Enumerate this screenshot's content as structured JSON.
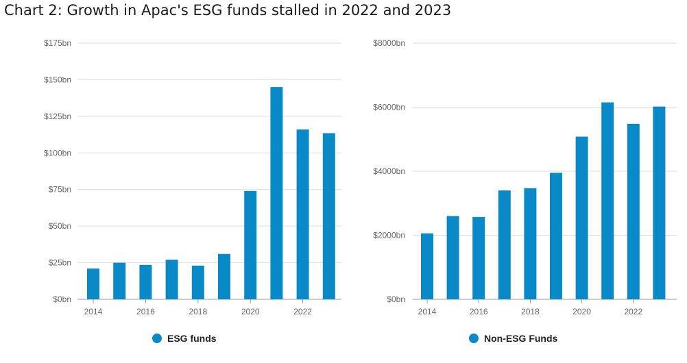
{
  "title": "Chart 2: Growth in Apac's ESG funds stalled in 2022 and 2023",
  "colors": {
    "bar": "#0a89c8",
    "grid": "#dddddd",
    "axis": "#999999"
  },
  "chart_data": [
    {
      "type": "bar",
      "title": "",
      "xlabel": "",
      "ylabel": "",
      "x": [
        2014,
        2015,
        2016,
        2017,
        2018,
        2019,
        2020,
        2021,
        2022,
        2023
      ],
      "x_tick_labels": [
        "2014",
        "2016",
        "2018",
        "2020",
        "2022"
      ],
      "series": [
        {
          "name": "ESG funds",
          "values": [
            21,
            25,
            23.5,
            27,
            23,
            31,
            74,
            145,
            116,
            113.5
          ]
        }
      ],
      "ylim": [
        0,
        175
      ],
      "y_ticks": [
        0,
        25,
        50,
        75,
        100,
        125,
        150,
        175
      ],
      "y_tick_labels": [
        "$0bn",
        "$25bn",
        "$50bn",
        "$75bn",
        "$100bn",
        "$125bn",
        "$150bn",
        "$175bn"
      ],
      "grid": true,
      "legend": "bottom-center"
    },
    {
      "type": "bar",
      "title": "",
      "xlabel": "",
      "ylabel": "",
      "x": [
        2014,
        2015,
        2016,
        2017,
        2018,
        2019,
        2020,
        2021,
        2022,
        2023
      ],
      "x_tick_labels": [
        "2014",
        "2016",
        "2018",
        "2020",
        "2022"
      ],
      "series": [
        {
          "name": "Non-ESG Funds",
          "values": [
            2060,
            2600,
            2570,
            3400,
            3470,
            3950,
            5080,
            6150,
            5480,
            6020
          ]
        }
      ],
      "ylim": [
        0,
        8000
      ],
      "y_ticks": [
        0,
        2000,
        4000,
        6000,
        8000
      ],
      "y_tick_labels": [
        "$0bn",
        "$2000bn",
        "$4000bn",
        "$6000bn",
        "$8000bn"
      ],
      "grid": true,
      "legend": "bottom-center"
    }
  ]
}
